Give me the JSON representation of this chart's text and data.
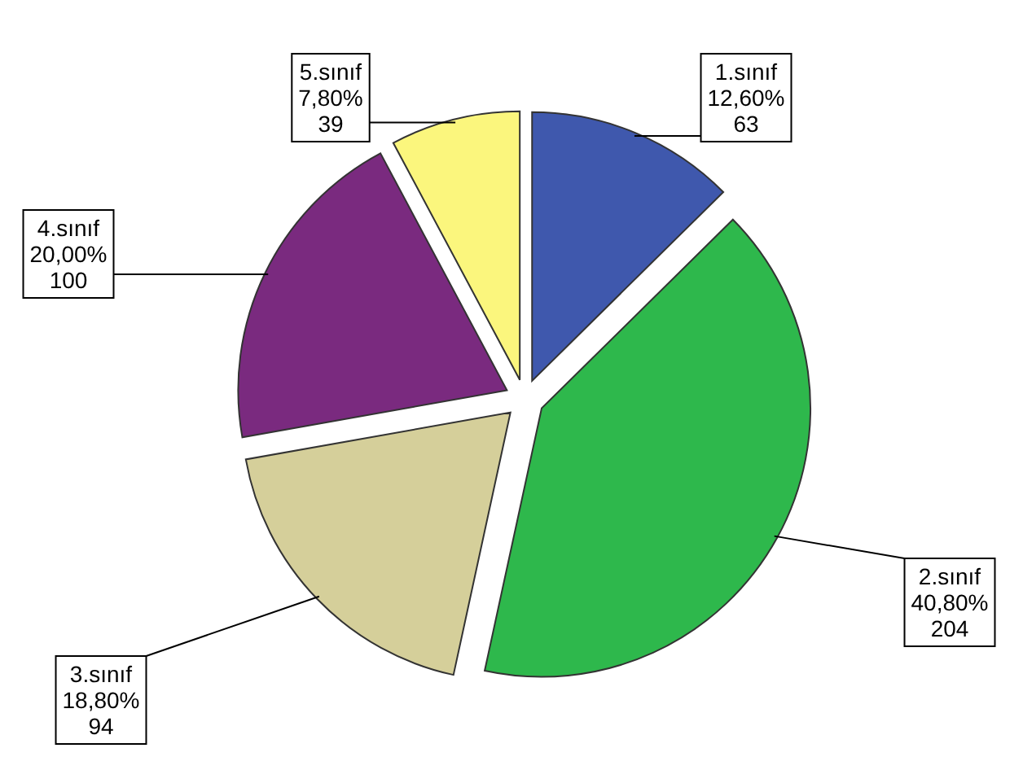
{
  "chart_data": {
    "type": "pie",
    "categories": [
      "1.sınıf",
      "2.sınıf",
      "3.sınıf",
      "4.sınıf",
      "5.sınıf"
    ],
    "values": [
      12.6,
      40.8,
      18.8,
      20.0,
      7.8
    ],
    "value_labels": [
      "12,60%\n63",
      "40,80%\n204",
      "18,80%\n94",
      "20,00%\n100",
      "7,80%\n39"
    ],
    "colors": [
      "#3f58ad",
      "#2eb84c",
      "#d5cf9a",
      "#7a2a7f",
      "#fbf67d"
    ]
  }
}
